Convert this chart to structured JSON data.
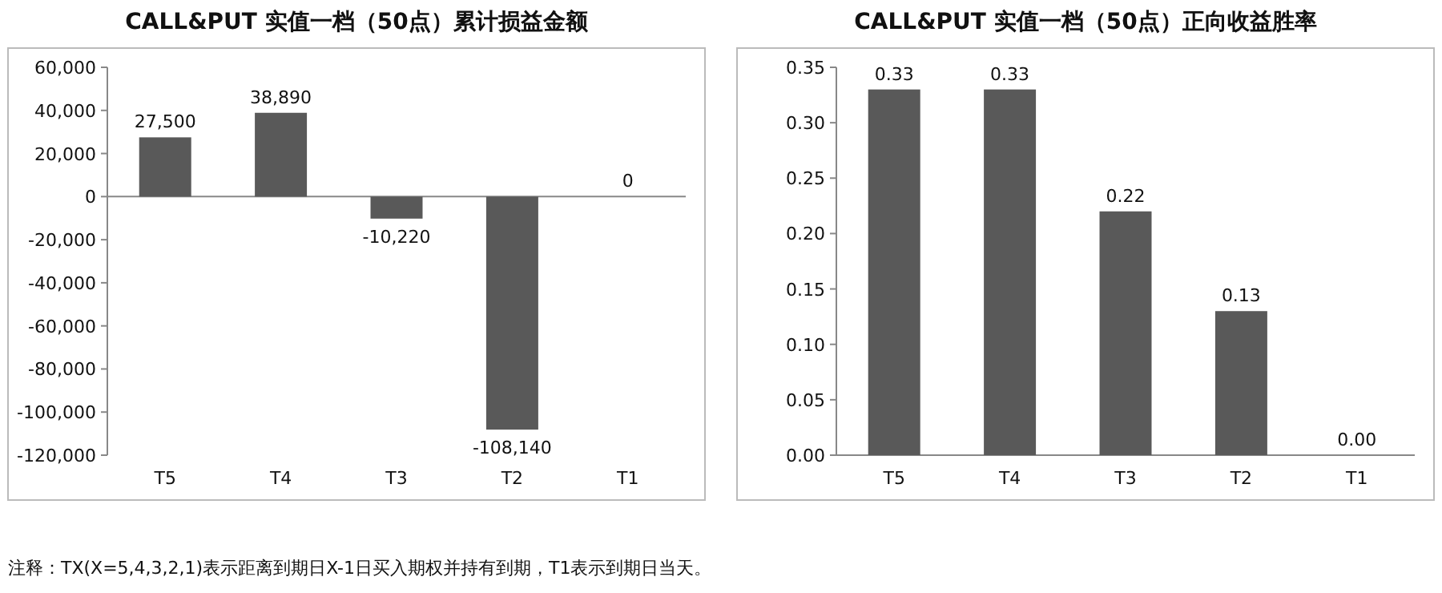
{
  "chart_data": [
    {
      "type": "bar",
      "title": "CALL&PUT 实值一档（50点）累计损益金额",
      "categories": [
        "T5",
        "T4",
        "T3",
        "T2",
        "T1"
      ],
      "values": [
        27500,
        38890,
        -10220,
        -108140,
        0
      ],
      "value_labels": [
        "27,500",
        "38,890",
        "-10,220",
        "-108,140",
        "0"
      ],
      "color": "#595959",
      "ylim": [
        -120000,
        60000
      ],
      "yticks": [
        {
          "value": -120000,
          "label": "-120,000"
        },
        {
          "value": -100000,
          "label": "-100,000"
        },
        {
          "value": -80000,
          "label": "-80,000"
        },
        {
          "value": -60000,
          "label": "-60,000"
        },
        {
          "value": -40000,
          "label": "-40,000"
        },
        {
          "value": -20000,
          "label": "-20,000"
        },
        0,
        {
          "value": 20000,
          "label": "20,000"
        },
        {
          "value": 40000,
          "label": "40,000"
        },
        {
          "value": 60000,
          "label": "60,000"
        }
      ],
      "annotations": [
        "注释：TX(X=5,4,3,2,1)表示距离到期日X-1日买入期权并持有到期，T1表示到期日当天。"
      ]
    },
    {
      "type": "bar",
      "title": "CALL&PUT 实值一档（50点）正向收益胜率",
      "categories": [
        "T5",
        "T4",
        "T3",
        "T2",
        "T1"
      ],
      "values": [
        0.33,
        0.33,
        0.22,
        0.13,
        0
      ],
      "value_labels": [
        "0.33",
        "0.33",
        "0.22",
        "0.13",
        "0.00"
      ],
      "color": "#595959",
      "ylim": [
        0,
        0.35
      ],
      "yticks": [
        {
          "value": 0,
          "label": "0.00"
        },
        {
          "value": 0.05,
          "label": "0.05"
        },
        {
          "value": 0.1,
          "label": "0.10"
        },
        {
          "value": 0.15,
          "label": "0.15"
        },
        {
          "value": 0.2,
          "label": "0.20"
        },
        {
          "value": 0.25,
          "label": "0.25"
        },
        {
          "value": 0.3,
          "label": "0.30"
        },
        {
          "value": 0.35,
          "label": "0.35"
        }
      ]
    }
  ]
}
